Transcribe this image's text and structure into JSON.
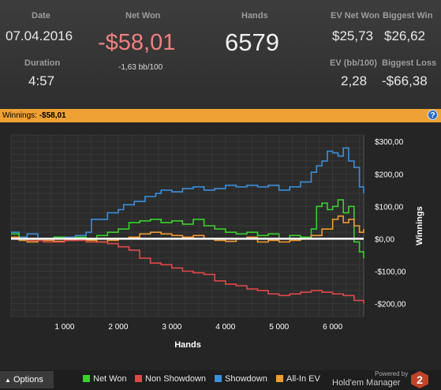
{
  "stats": {
    "date_label": "Date",
    "date_value": "07.04.2016",
    "duration_label": "Duration",
    "duration_value": "4:57",
    "netwon_label": "Net Won",
    "netwon_value": "-$58,01",
    "netwon_bb": "-1,63 bb/100",
    "hands_label": "Hands",
    "hands_value": "6579",
    "evnet_label": "EV Net Won",
    "evnet_value": "$25,73",
    "bigwin_label": "Biggest Win",
    "bigwin_value": "$26,62",
    "evbb_label": "EV (bb/100)",
    "evbb_value": "2,28",
    "bigloss_label": "Biggest Loss",
    "bigloss_value": "-$66,38"
  },
  "winbar": {
    "label": "Winnings:",
    "value": "-$58,01",
    "help": "?"
  },
  "chart_data": {
    "type": "line",
    "xlabel": "Hands",
    "ylabel": "Winnings",
    "xlim": [
      0,
      6579
    ],
    "ylim": [
      -240,
      320
    ],
    "xticks": [
      1000,
      2000,
      3000,
      4000,
      5000,
      6000
    ],
    "xtick_labels": [
      "1 000",
      "2 000",
      "3 000",
      "4 000",
      "5 000",
      "6 000"
    ],
    "yticks": [
      300,
      200,
      100,
      0,
      -100,
      -200
    ],
    "ytick_labels": [
      "$300,00",
      "$200,00",
      "$100,00",
      "$0,00",
      "-$100,00",
      "-$200,00"
    ],
    "zero_line": true,
    "grid": true,
    "series": [
      {
        "name": "Showdown",
        "color": "#3a8fdc",
        "x": [
          0,
          150,
          300,
          500,
          800,
          1000,
          1200,
          1400,
          1500,
          1800,
          2000,
          2100,
          2300,
          2500,
          2700,
          2800,
          3000,
          3200,
          3400,
          3600,
          3800,
          4000,
          4200,
          4400,
          4600,
          4800,
          5000,
          5200,
          5400,
          5600,
          5700,
          5800,
          5900,
          6000,
          6100,
          6200,
          6300,
          6400,
          6500,
          6579
        ],
        "y": [
          20,
          5,
          15,
          0,
          5,
          5,
          10,
          20,
          60,
          80,
          90,
          105,
          115,
          130,
          140,
          150,
          145,
          155,
          160,
          150,
          155,
          165,
          160,
          165,
          160,
          165,
          150,
          160,
          175,
          205,
          225,
          240,
          270,
          265,
          255,
          280,
          240,
          220,
          160,
          140
        ]
      },
      {
        "name": "Net Won",
        "color": "#39d12b",
        "x": [
          0,
          150,
          300,
          500,
          800,
          1000,
          1200,
          1400,
          1600,
          1800,
          2000,
          2200,
          2400,
          2600,
          2800,
          3000,
          3200,
          3400,
          3600,
          3800,
          4000,
          4200,
          4400,
          4600,
          4800,
          5000,
          5200,
          5400,
          5600,
          5700,
          5800,
          5900,
          6000,
          6100,
          6200,
          6300,
          6400,
          6500,
          6579
        ],
        "y": [
          15,
          0,
          -5,
          0,
          5,
          0,
          5,
          -2,
          10,
          20,
          30,
          50,
          55,
          60,
          50,
          55,
          45,
          60,
          40,
          30,
          20,
          15,
          20,
          10,
          15,
          0,
          10,
          5,
          30,
          100,
          110,
          90,
          100,
          120,
          80,
          100,
          -10,
          -40,
          -60
        ]
      },
      {
        "name": "All-In EV",
        "color": "#f29b33",
        "x": [
          0,
          150,
          300,
          500,
          800,
          1000,
          1200,
          1400,
          1600,
          1800,
          2000,
          2200,
          2400,
          2600,
          2800,
          3000,
          3200,
          3400,
          3600,
          3800,
          4000,
          4200,
          4400,
          4600,
          4800,
          5000,
          5200,
          5400,
          5600,
          5800,
          6000,
          6100,
          6200,
          6300,
          6400,
          6500,
          6579
        ],
        "y": [
          5,
          -5,
          -10,
          -5,
          -8,
          -5,
          0,
          -5,
          -10,
          -5,
          0,
          5,
          15,
          20,
          15,
          10,
          5,
          10,
          0,
          -5,
          -8,
          0,
          5,
          -10,
          -5,
          -10,
          -5,
          0,
          10,
          30,
          60,
          70,
          50,
          60,
          40,
          20,
          30
        ]
      },
      {
        "name": "Non Showdown",
        "color": "#e04848",
        "x": [
          0,
          300,
          600,
          1000,
          1400,
          1800,
          2000,
          2200,
          2400,
          2600,
          2800,
          3000,
          3200,
          3400,
          3600,
          3800,
          4000,
          4200,
          4400,
          4600,
          4800,
          5000,
          5200,
          5400,
          5600,
          5800,
          6000,
          6200,
          6400,
          6579
        ],
        "y": [
          0,
          -5,
          -10,
          -5,
          -10,
          -15,
          -25,
          -35,
          -60,
          -75,
          -80,
          -90,
          -100,
          -105,
          -110,
          -130,
          -140,
          -145,
          -155,
          -160,
          -170,
          -175,
          -170,
          -165,
          -160,
          -165,
          -170,
          -175,
          -190,
          -200
        ]
      }
    ]
  },
  "footer": {
    "options_label": "Options",
    "legend": [
      {
        "label": "Net Won",
        "color": "#39d12b"
      },
      {
        "label": "Non Showdown",
        "color": "#e04848"
      },
      {
        "label": "Showdown",
        "color": "#3a8fdc"
      },
      {
        "label": "All-In EV",
        "color": "#f29b33"
      }
    ],
    "powered_by": "Powered by",
    "brand": "Hold'em Manager",
    "logo_digit": "2"
  }
}
